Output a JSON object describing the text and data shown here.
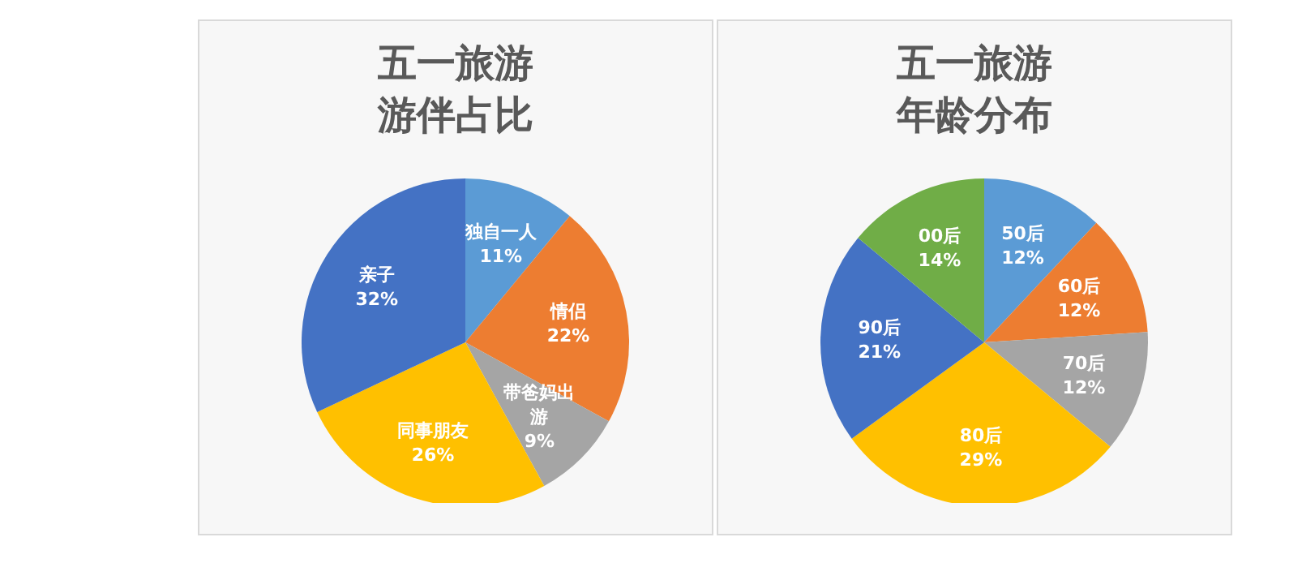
{
  "chart_data": [
    {
      "type": "pie",
      "title": "五一旅游游伴占比",
      "categories": [
        "独自一人",
        "情侣",
        "带爸妈出游",
        "同事朋友",
        "亲子"
      ],
      "values": [
        11,
        22,
        9,
        26,
        32
      ],
      "value_labels": [
        "11%",
        "22%",
        "9%",
        "26%",
        "32%"
      ],
      "colors": [
        "#5b9bd5",
        "#ed7d31",
        "#a5a5a5",
        "#ffc000",
        "#4472c4"
      ],
      "legend": false
    },
    {
      "type": "pie",
      "title": "五一旅游年龄分布",
      "categories": [
        "50后",
        "60后",
        "70后",
        "80后",
        "90后",
        "00后"
      ],
      "values": [
        12,
        12,
        12,
        29,
        21,
        14
      ],
      "value_labels": [
        "12%",
        "12%",
        "12%",
        "29%",
        "21%",
        "14%"
      ],
      "colors": [
        "#5b9bd5",
        "#ed7d31",
        "#a5a5a5",
        "#ffc000",
        "#4472c4",
        "#70ad47"
      ],
      "legend": false
    }
  ]
}
